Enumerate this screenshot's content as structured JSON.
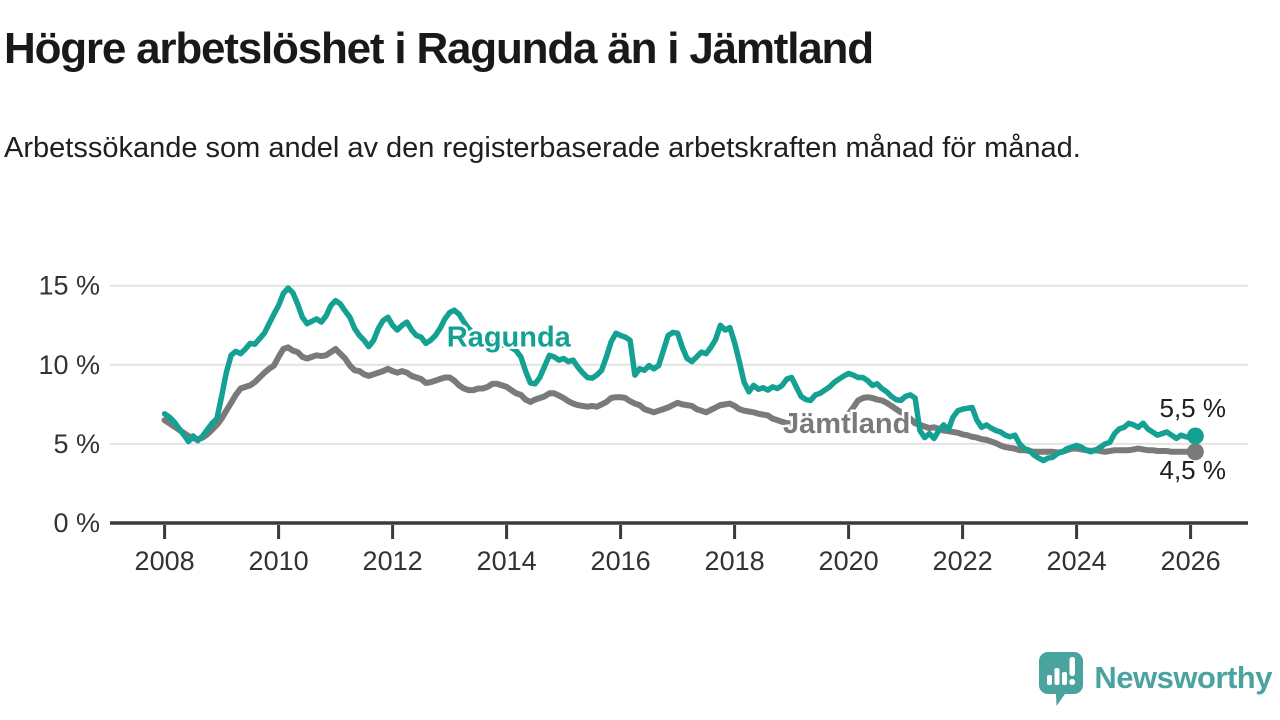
{
  "header": {
    "title": "Högre arbetslöshet i Ragunda än i Jämtland",
    "subtitle": "Arbetssökande som andel av den registerbaserade arbetskraften månad för månad."
  },
  "chart_data": {
    "type": "line",
    "title": "Högre arbetslöshet i Ragunda än i Jämtland",
    "xlabel": "",
    "ylabel": "",
    "x_start_year": 2008,
    "points_per_year": 12,
    "x_axis_ticks": [
      2008,
      2010,
      2012,
      2014,
      2016,
      2018,
      2020,
      2022,
      2024,
      2026
    ],
    "y_axis_ticks": [
      {
        "value": 0,
        "label": "0 %"
      },
      {
        "value": 5,
        "label": "5 %"
      },
      {
        "value": 10,
        "label": "10 %"
      },
      {
        "value": 15,
        "label": "15 %"
      }
    ],
    "y_gridlines": [
      5,
      10,
      15
    ],
    "ylim": [
      0,
      16.5
    ],
    "xlim": [
      2007,
      2027
    ],
    "grid": "horizontal",
    "legend_position": "inline-labels",
    "series": [
      {
        "name": "Jämtland",
        "color": "#7a7a7a",
        "end_label": "4,5 %",
        "end_value": 4.5,
        "label_pos": {
          "year": 2018.85,
          "value": 5.69
        },
        "values": [
          6.5,
          6.3,
          6.1,
          5.9,
          5.7,
          5.5,
          5.35,
          5.3,
          5.4,
          5.6,
          5.9,
          6.2,
          6.6,
          7.1,
          7.6,
          8.1,
          8.5,
          8.6,
          8.7,
          8.9,
          9.2,
          9.5,
          9.75,
          9.95,
          10.5,
          11.0,
          11.1,
          10.9,
          10.8,
          10.5,
          10.4,
          10.5,
          10.6,
          10.55,
          10.6,
          10.8,
          11.0,
          10.7,
          10.4,
          9.95,
          9.65,
          9.6,
          9.4,
          9.3,
          9.4,
          9.5,
          9.6,
          9.75,
          9.6,
          9.5,
          9.6,
          9.5,
          9.3,
          9.2,
          9.1,
          8.85,
          8.9,
          9.0,
          9.1,
          9.2,
          9.2,
          9.0,
          8.7,
          8.5,
          8.4,
          8.4,
          8.5,
          8.5,
          8.6,
          8.8,
          8.8,
          8.7,
          8.6,
          8.4,
          8.2,
          8.1,
          7.8,
          7.65,
          7.8,
          7.9,
          8.0,
          8.2,
          8.2,
          8.05,
          7.9,
          7.7,
          7.55,
          7.45,
          7.4,
          7.35,
          7.4,
          7.35,
          7.5,
          7.65,
          7.9,
          7.95,
          7.95,
          7.9,
          7.7,
          7.55,
          7.45,
          7.2,
          7.1,
          7.0,
          7.1,
          7.2,
          7.3,
          7.45,
          7.6,
          7.5,
          7.45,
          7.4,
          7.2,
          7.1,
          7.0,
          7.15,
          7.3,
          7.45,
          7.5,
          7.55,
          7.4,
          7.2,
          7.1,
          7.05,
          7.0,
          6.9,
          6.85,
          6.8,
          6.6,
          6.5,
          6.4,
          6.3,
          6.3,
          6.25,
          6.2,
          6.15,
          6.1,
          6.15,
          6.2,
          6.25,
          6.3,
          6.35,
          6.45,
          6.6,
          6.9,
          7.3,
          7.75,
          7.9,
          7.95,
          7.9,
          7.8,
          7.75,
          7.6,
          7.4,
          7.2,
          7.0,
          6.8,
          6.6,
          6.3,
          6.2,
          6.1,
          6.0,
          6.05,
          5.95,
          5.85,
          5.8,
          5.75,
          5.7,
          5.6,
          5.55,
          5.45,
          5.4,
          5.3,
          5.25,
          5.15,
          5.05,
          4.9,
          4.8,
          4.75,
          4.7,
          4.6,
          4.6,
          4.55,
          4.5,
          4.5,
          4.5,
          4.5,
          4.5,
          4.45,
          4.5,
          4.6,
          4.7,
          4.7,
          4.65,
          4.6,
          4.55,
          4.6,
          4.55,
          4.5,
          4.55,
          4.6,
          4.6,
          4.6,
          4.6,
          4.65,
          4.7,
          4.65,
          4.6,
          4.6,
          4.55,
          4.55,
          4.55,
          4.5,
          4.5,
          4.5,
          4.5,
          4.5,
          4.5
        ]
      },
      {
        "name": "Ragunda",
        "color": "#14a092",
        "end_label": "5,5 %",
        "end_value": 5.5,
        "label_pos": {
          "year": 2012.95,
          "value": 11.15
        },
        "values": [
          6.9,
          6.7,
          6.4,
          6.0,
          5.6,
          5.15,
          5.5,
          5.2,
          5.5,
          5.9,
          6.3,
          6.6,
          8.0,
          9.5,
          10.6,
          10.85,
          10.7,
          11.0,
          11.35,
          11.3,
          11.65,
          12.0,
          12.6,
          13.2,
          13.75,
          14.5,
          14.85,
          14.55,
          13.85,
          13.0,
          12.6,
          12.75,
          12.9,
          12.7,
          13.1,
          13.75,
          14.05,
          13.85,
          13.4,
          13.0,
          12.3,
          11.85,
          11.55,
          11.15,
          11.55,
          12.3,
          12.8,
          13.0,
          12.5,
          12.2,
          12.5,
          12.7,
          12.2,
          11.85,
          11.75,
          11.35,
          11.55,
          11.85,
          12.3,
          12.9,
          13.3,
          13.45,
          13.2,
          12.7,
          12.3,
          12.0,
          11.8,
          11.6,
          11.5,
          11.4,
          11.3,
          11.25,
          11.2,
          11.1,
          10.9,
          10.5,
          9.6,
          8.85,
          8.8,
          9.2,
          9.9,
          10.6,
          10.5,
          10.3,
          10.4,
          10.2,
          10.3,
          9.85,
          9.5,
          9.2,
          9.15,
          9.35,
          9.65,
          10.5,
          11.45,
          12.0,
          11.85,
          11.75,
          11.55,
          9.35,
          9.75,
          9.65,
          9.95,
          9.75,
          9.95,
          10.9,
          11.85,
          12.05,
          12.0,
          11.1,
          10.4,
          10.2,
          10.5,
          10.8,
          10.7,
          11.1,
          11.6,
          12.5,
          12.2,
          12.35,
          11.4,
          10.2,
          8.9,
          8.3,
          8.7,
          8.45,
          8.55,
          8.4,
          8.6,
          8.5,
          8.7,
          9.1,
          9.2,
          8.6,
          8.0,
          7.8,
          7.75,
          8.1,
          8.2,
          8.4,
          8.6,
          8.9,
          9.1,
          9.3,
          9.45,
          9.35,
          9.2,
          9.2,
          9.0,
          8.7,
          8.8,
          8.5,
          8.3,
          8.0,
          7.8,
          7.75,
          8.0,
          8.1,
          7.9,
          5.85,
          5.4,
          5.65,
          5.35,
          5.85,
          6.2,
          5.9,
          6.7,
          7.1,
          7.2,
          7.25,
          7.3,
          6.5,
          6.05,
          6.2,
          6.0,
          5.85,
          5.75,
          5.55,
          5.45,
          5.55,
          5.0,
          4.7,
          4.6,
          4.3,
          4.1,
          3.95,
          4.1,
          4.15,
          4.4,
          4.5,
          4.7,
          4.8,
          4.9,
          4.8,
          4.6,
          4.5,
          4.6,
          4.8,
          5.0,
          5.1,
          5.65,
          5.95,
          6.05,
          6.3,
          6.2,
          6.05,
          6.3,
          5.95,
          5.75,
          5.55,
          5.65,
          5.75,
          5.55,
          5.35,
          5.55,
          5.45,
          5.4,
          5.5
        ]
      }
    ]
  },
  "colors": {
    "accent_teal": "#14a092",
    "series_gray": "#7a7a7a",
    "gridline": "#e3e3e3",
    "axis": "#3a3a3a",
    "axis_text": "#333333",
    "value_label_text": "#1f1f1f",
    "logo_teal": "#4ba3a0"
  },
  "footer": {
    "brand": "Newsworthy"
  }
}
